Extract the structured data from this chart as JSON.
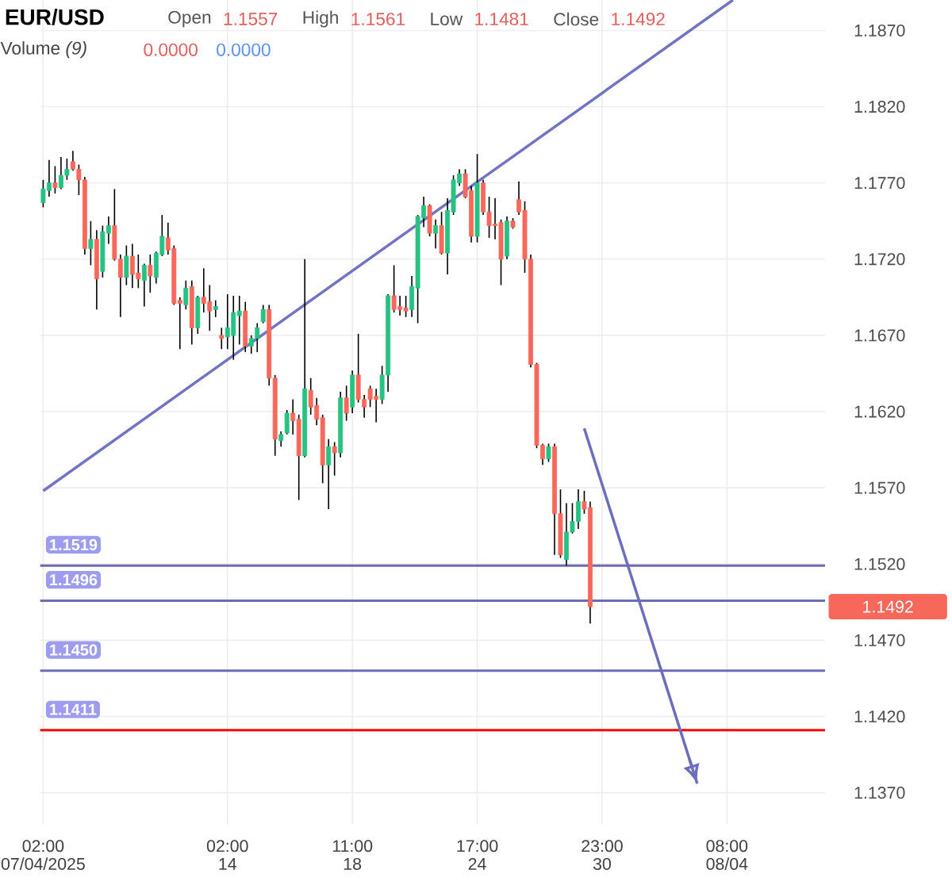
{
  "chart_data": {
    "type": "candlestick",
    "title": "EUR/USD",
    "annotations": [
      "Open",
      "1.1557",
      "High",
      "1.1561",
      "Low",
      "1.1481",
      "Close",
      "1.1492",
      "Volume *(9)*",
      "0.0000",
      "0.0000",
      "1.1492"
    ],
    "series": [
      {
        "type": "line",
        "color": "#7373c4",
        "values": [
          1.1568,
          null,
          null,
          null,
          null,
          null,
          null,
          null,
          null,
          null,
          null,
          null,
          null,
          null,
          null,
          null,
          null,
          null,
          null,
          null,
          null,
          null,
          null,
          null,
          null,
          null,
          null,
          null,
          null,
          null,
          null,
          null,
          null,
          null,
          null,
          null,
          null,
          null,
          null,
          null,
          null,
          null,
          null,
          null,
          null,
          null,
          null,
          null,
          null,
          null,
          null,
          null,
          null,
          null,
          null,
          null,
          null,
          null,
          null,
          null,
          null,
          null,
          null,
          null,
          null,
          null,
          null,
          null,
          null,
          null,
          null,
          null,
          null,
          null,
          null,
          null,
          null,
          null,
          null,
          null,
          null,
          null,
          null,
          null,
          null,
          null,
          null,
          null,
          null,
          null,
          null,
          null,
          null,
          null,
          null,
          null,
          null,
          null,
          null,
          null,
          null,
          null,
          null,
          null,
          null,
          null,
          null,
          null,
          null,
          null,
          null,
          null,
          null,
          null,
          null,
          null,
          1.189,
          null,
          null,
          null,
          null,
          null,
          null,
          null,
          null,
          null,
          null,
          null,
          null,
          null,
          null,
          null
        ]
      },
      {
        "type": "line",
        "color": "#6d6dbd",
        "values": [
          null,
          null,
          null,
          null,
          null,
          null,
          null,
          null,
          null,
          null,
          null,
          null,
          null,
          null,
          null,
          null,
          null,
          null,
          null,
          null,
          null,
          null,
          null,
          null,
          null,
          null,
          null,
          null,
          null,
          null,
          null,
          null,
          null,
          null,
          null,
          null,
          null,
          null,
          null,
          null,
          null,
          null,
          null,
          null,
          null,
          null,
          null,
          null,
          null,
          null,
          null,
          null,
          null,
          null,
          null,
          null,
          null,
          null,
          null,
          null,
          null,
          null,
          null,
          null,
          null,
          null,
          null,
          null,
          null,
          null,
          null,
          null,
          null,
          null,
          null,
          null,
          null,
          null,
          null,
          null,
          null,
          null,
          null,
          null,
          null,
          null,
          null,
          null,
          null,
          null,
          null,
          1.1609,
          null,
          null,
          null,
          null,
          null,
          null,
          null,
          null,
          null,
          null,
          null,
          null,
          null,
          null,
          null,
          null,
          null,
          null,
          1.1376,
          null,
          null,
          null,
          null,
          null,
          null,
          null,
          null,
          null,
          null,
          null,
          null,
          null,
          null,
          null,
          null,
          null,
          null,
          null,
          null,
          null
        ]
      },
      {
        "ohlc": [
          [
            1.1757,
            1.1772,
            1.1754,
            1.1766
          ],
          [
            1.1765,
            1.1785,
            1.1761,
            1.177
          ],
          [
            1.177,
            1.1781,
            1.1763,
            1.1767
          ],
          [
            1.1767,
            1.1787,
            1.1766,
            1.1775
          ],
          [
            1.1775,
            1.1786,
            1.1772,
            1.1779
          ],
          [
            1.1784,
            1.1791,
            1.1778,
            1.1779
          ],
          [
            1.1779,
            1.1782,
            1.1762,
            1.1772
          ],
          [
            1.1772,
            1.1774,
            1.1723,
            1.1727
          ],
          [
            1.1727,
            1.1745,
            1.1716,
            1.1733
          ],
          [
            1.1733,
            1.1739,
            1.1687,
            1.1707
          ],
          [
            1.1712,
            1.1742,
            1.1708,
            1.1738
          ],
          [
            1.1737,
            1.1748,
            1.173,
            1.1742
          ],
          [
            1.1742,
            1.1766,
            1.1719,
            1.172
          ],
          [
            1.172,
            1.1723,
            1.1682,
            1.1708
          ],
          [
            1.1708,
            1.1729,
            1.1703,
            1.1722
          ],
          [
            1.1722,
            1.173,
            1.1701,
            1.171
          ],
          [
            1.1711,
            1.1723,
            1.1701,
            1.1707
          ],
          [
            1.1706,
            1.1717,
            1.1689,
            1.1716
          ],
          [
            1.1716,
            1.1723,
            1.1698,
            1.1709
          ],
          [
            1.1708,
            1.1725,
            1.1704,
            1.1724
          ],
          [
            1.1723,
            1.1749,
            1.1722,
            1.1735
          ],
          [
            1.1734,
            1.1744,
            1.1723,
            1.1726
          ],
          [
            1.1727,
            1.1729,
            1.169,
            1.1691
          ],
          [
            1.1693,
            1.1695,
            1.1661,
            1.1691
          ],
          [
            1.169,
            1.1706,
            1.1687,
            1.1701
          ],
          [
            1.1702,
            1.1706,
            1.1664,
            1.1675
          ],
          [
            1.1675,
            1.1696,
            1.1671,
            1.1695
          ],
          [
            1.1695,
            1.1714,
            1.1685,
            1.1691
          ],
          [
            1.1692,
            1.1703,
            1.1673,
            1.1686
          ],
          [
            1.1687,
            1.1693,
            1.1682,
            1.1689
          ],
          [
            1.167,
            1.1675,
            1.1661,
            1.1668
          ],
          [
            1.1669,
            1.1697,
            1.1661,
            1.1675
          ],
          [
            1.167,
            1.1696,
            1.1654,
            1.1685
          ],
          [
            1.1683,
            1.1696,
            1.1664,
            1.1686
          ],
          [
            1.1686,
            1.1692,
            1.1659,
            1.1663
          ],
          [
            1.1663,
            1.167,
            1.1658,
            1.1668
          ],
          [
            1.1668,
            1.1678,
            1.1659,
            1.1675
          ],
          [
            1.1679,
            1.169,
            1.1678,
            1.1687
          ],
          [
            1.1687,
            1.169,
            1.1637,
            1.1642
          ],
          [
            1.1642,
            1.1644,
            1.1591,
            1.1602
          ],
          [
            1.1601,
            1.1607,
            1.1597,
            1.1605
          ],
          [
            1.1606,
            1.1621,
            1.1605,
            1.1619
          ],
          [
            1.1619,
            1.1628,
            1.1605,
            1.1614
          ],
          [
            1.1615,
            1.1618,
            1.1562,
            1.1591
          ],
          [
            1.1591,
            1.172,
            1.159,
            1.1635
          ],
          [
            1.1634,
            1.1642,
            1.1618,
            1.1623
          ],
          [
            1.1624,
            1.1629,
            1.1611,
            1.1615
          ],
          [
            1.1616,
            1.1618,
            1.1573,
            1.1585
          ],
          [
            1.1585,
            1.1602,
            1.1556,
            1.1597
          ],
          [
            1.1597,
            1.16,
            1.1578,
            1.1593
          ],
          [
            1.1593,
            1.1633,
            1.159,
            1.1629
          ],
          [
            1.1629,
            1.1637,
            1.1614,
            1.1619
          ],
          [
            1.1623,
            1.1647,
            1.1619,
            1.1644
          ],
          [
            1.1644,
            1.1671,
            1.1626,
            1.1628
          ],
          [
            1.1628,
            1.1631,
            1.1616,
            1.1623
          ],
          [
            1.1635,
            1.1637,
            1.1623,
            1.1628
          ],
          [
            1.163,
            1.1635,
            1.1613,
            1.1628
          ],
          [
            1.1628,
            1.165,
            1.1625,
            1.1644
          ],
          [
            1.1644,
            1.1697,
            1.1633,
            1.1696
          ],
          [
            1.1696,
            1.1716,
            1.1685,
            1.1687
          ],
          [
            1.1689,
            1.1696,
            1.1683,
            1.1687
          ],
          [
            1.1688,
            1.1696,
            1.1682,
            1.1686
          ],
          [
            1.1687,
            1.1709,
            1.1682,
            1.1702
          ],
          [
            1.1701,
            1.1749,
            1.1678,
            1.1748
          ],
          [
            1.1747,
            1.1761,
            1.1741,
            1.1755
          ],
          [
            1.1755,
            1.1756,
            1.1735,
            1.1737
          ],
          [
            1.1737,
            1.1746,
            1.1727,
            1.1742
          ],
          [
            1.1742,
            1.1751,
            1.1723,
            1.1724
          ],
          [
            1.1724,
            1.176,
            1.171,
            1.1752
          ],
          [
            1.1751,
            1.1775,
            1.1749,
            1.1772
          ],
          [
            1.177,
            1.1779,
            1.1768,
            1.1776
          ],
          [
            1.1776,
            1.1779,
            1.176,
            1.1761
          ],
          [
            1.1765,
            1.1768,
            1.1731,
            1.1735
          ],
          [
            1.1735,
            1.1789,
            1.1731,
            1.177
          ],
          [
            1.177,
            1.1772,
            1.1749,
            1.1751
          ],
          [
            1.1751,
            1.1761,
            1.1734,
            1.1742
          ],
          [
            1.1743,
            1.176,
            1.1733,
            1.1742
          ],
          [
            1.1744,
            1.1746,
            1.1703,
            1.172
          ],
          [
            1.1722,
            1.1748,
            1.172,
            1.1745
          ],
          [
            1.1745,
            1.1747,
            1.174,
            1.1741
          ],
          [
            1.1759,
            1.1771,
            1.1749,
            1.1751
          ],
          [
            1.1752,
            1.1758,
            1.1711,
            1.172
          ],
          [
            1.172,
            1.1723,
            1.1649,
            1.1651
          ],
          [
            1.1651,
            1.1652,
            1.1596,
            1.1598
          ],
          [
            1.1598,
            1.1599,
            1.1585,
            1.1589
          ],
          [
            1.1589,
            1.1599,
            1.1587,
            1.1597
          ],
          [
            1.1597,
            1.1599,
            1.1526,
            1.1553
          ],
          [
            1.1553,
            1.1569,
            1.1524,
            1.1526
          ],
          [
            1.1523,
            1.156,
            1.1519,
            1.1541
          ],
          [
            1.1541,
            1.156,
            1.154,
            1.1548
          ],
          [
            1.1548,
            1.1569,
            1.1543,
            1.1561
          ],
          [
            1.1561,
            1.1568,
            1.1553,
            1.1556
          ],
          [
            1.1557,
            1.1561,
            1.1481,
            1.1492
          ],
          null,
          null,
          null,
          null,
          null,
          null,
          null,
          null,
          null,
          null,
          null,
          null,
          null,
          null,
          null,
          null,
          null,
          null,
          null,
          null,
          null,
          null,
          null,
          null,
          null,
          null,
          null,
          null,
          null,
          null,
          null,
          null,
          null,
          null,
          null,
          null,
          null,
          null,
          null
        ]
      }
    ],
    "ref_lines": [
      {
        "axis": "y",
        "value": 1.1519,
        "label": "1.1519",
        "color": "#6b6bb8"
      },
      {
        "axis": "y",
        "value": 1.1496,
        "label": "1.1496",
        "color": "#6b6bb8"
      },
      {
        "axis": "y",
        "value": 1.145,
        "label": "1.1450",
        "color": "#6b6bb8"
      },
      {
        "axis": "y",
        "value": 1.1411,
        "label": "1.1411",
        "color": "#ff0000"
      }
    ],
    "categories": [
      "02:00 07/04/2025",
      null,
      null,
      null,
      null,
      null,
      null,
      null,
      null,
      null,
      null,
      null,
      null,
      null,
      null,
      null,
      null,
      null,
      null,
      null,
      null,
      null,
      null,
      null,
      null,
      null,
      null,
      null,
      null,
      null,
      null,
      "02:00 14",
      null,
      null,
      null,
      null,
      null,
      null,
      null,
      null,
      null,
      null,
      null,
      null,
      null,
      null,
      null,
      null,
      null,
      null,
      null,
      null,
      "11:00 18",
      null,
      null,
      null,
      null,
      null,
      null,
      null,
      null,
      null,
      null,
      null,
      null,
      null,
      null,
      null,
      null,
      null,
      null,
      null,
      null,
      "17:00 24",
      null,
      null,
      null,
      null,
      null,
      null,
      null,
      null,
      null,
      null,
      null,
      null,
      null,
      null,
      null,
      null,
      null,
      null,
      null,
      null,
      "23:00 30",
      null,
      null,
      null,
      null,
      null,
      null,
      null,
      null,
      null,
      null,
      null,
      null,
      null,
      null,
      null,
      null,
      null,
      null,
      null,
      null,
      "08:00 08/04",
      null,
      null,
      null,
      null,
      null,
      null,
      null,
      null,
      null,
      null,
      null,
      null,
      null,
      null,
      null,
      null
    ],
    "ylim": [
      1.1349,
      1.189
    ],
    "yticks": [
      {
        "value": 1.137,
        "label": "1.1370"
      },
      {
        "value": 1.142,
        "label": "1.1420"
      },
      {
        "value": 1.147,
        "label": "1.1470"
      },
      {
        "value": 1.152,
        "label": "1.1520"
      },
      {
        "value": 1.157,
        "label": "1.1570"
      },
      {
        "value": 1.162,
        "label": "1.1620"
      },
      {
        "value": 1.167,
        "label": "1.1670"
      },
      {
        "value": 1.172,
        "label": "1.1720"
      },
      {
        "value": 1.177,
        "label": "1.1770"
      },
      {
        "value": 1.182,
        "label": "1.1820"
      },
      {
        "value": 1.187,
        "label": "1.1870"
      }
    ],
    "grid": true,
    "marker": "none"
  }
}
